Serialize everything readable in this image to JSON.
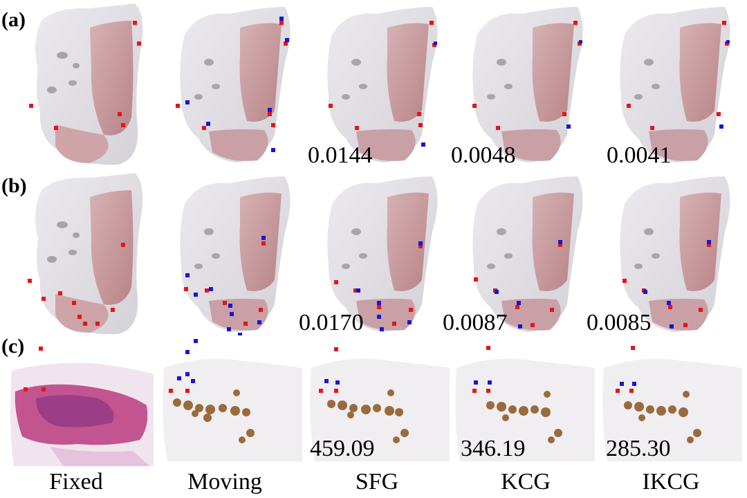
{
  "row_labels": [
    "(a)",
    "(b)",
    "(c)"
  ],
  "column_labels": [
    "Fixed",
    "Moving",
    "SFG",
    "KCG",
    "IKCG"
  ],
  "scores": {
    "a": [
      "0.0144",
      "0.0048",
      "0.0041"
    ],
    "b": [
      "0.0170",
      "0.0087",
      "0.0085"
    ],
    "c": [
      "459.09",
      "346.19",
      "285.30"
    ]
  },
  "colors": {
    "fixed_marker": "#e3151b",
    "moving_marker": "#1616d8",
    "he_stain": "#c2558f",
    "ihc_stain": "#9a6a3c",
    "tissue_pink": "#c9a1a4",
    "tissue_gray": "#d8d6da"
  }
}
